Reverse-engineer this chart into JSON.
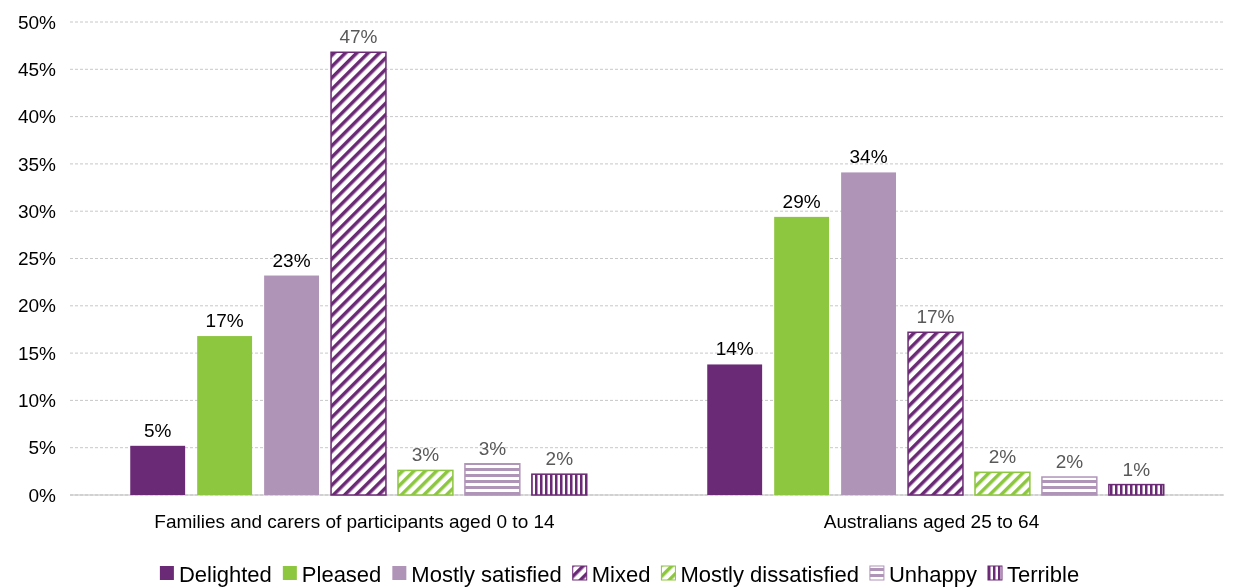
{
  "chart_data": {
    "type": "bar",
    "categories": [
      "Families and carers of participants aged 0 to 14",
      "Australians aged 25 to 64"
    ],
    "series": [
      {
        "name": "Delighted",
        "color": "#6b2a75",
        "values": [
          5.2,
          13.8
        ],
        "value_labels": [
          "5%",
          "14%"
        ]
      },
      {
        "name": "Pleased",
        "color": "#8dc63f",
        "values": [
          16.8,
          29.4
        ],
        "value_labels": [
          "17%",
          "29%"
        ]
      },
      {
        "name": "Mostly satisfied",
        "color": "#b094b8",
        "values": [
          23.2,
          34.1
        ],
        "value_labels": [
          "23%",
          "34%"
        ]
      },
      {
        "name": "Mixed",
        "color": "#6b2a75",
        "values": [
          46.8,
          17.2
        ],
        "value_labels": [
          "47%",
          "17%"
        ]
      },
      {
        "name": "Mostly dissatisfied",
        "color": "#8dc63f",
        "values": [
          2.6,
          2.4
        ],
        "value_labels": [
          "3%",
          "2%"
        ]
      },
      {
        "name": "Unhappy",
        "color": "#b094b8",
        "values": [
          3.3,
          1.9
        ],
        "value_labels": [
          "3%",
          "2%"
        ]
      },
      {
        "name": "Terrible",
        "color": "#6b2a75",
        "values": [
          2.2,
          1.1
        ],
        "value_labels": [
          "2%",
          "1%"
        ]
      }
    ],
    "ylim": [
      0,
      50
    ],
    "yticks": [
      {
        "value": 0,
        "label": "0%"
      },
      {
        "value": 5,
        "label": "5%"
      },
      {
        "value": 10,
        "label": "10%"
      },
      {
        "value": 15,
        "label": "15%"
      },
      {
        "value": 20,
        "label": "20%"
      },
      {
        "value": 25,
        "label": "25%"
      },
      {
        "value": 30,
        "label": "30%"
      },
      {
        "value": 35,
        "label": "35%"
      },
      {
        "value": 40,
        "label": "40%"
      },
      {
        "value": 45,
        "label": "45%"
      },
      {
        "value": 50,
        "label": "50%"
      }
    ],
    "grid": "y",
    "legend": "bottom"
  }
}
